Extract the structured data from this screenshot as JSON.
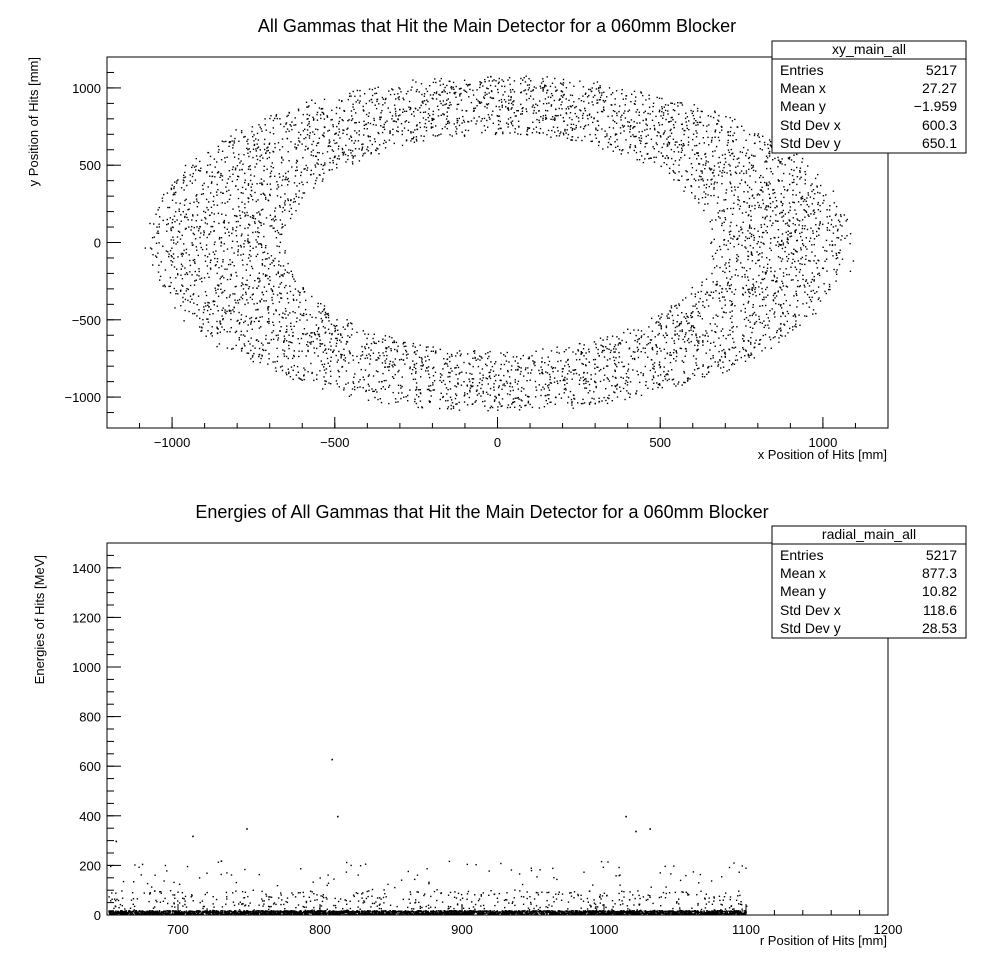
{
  "chart_data": [
    {
      "type": "scatter",
      "title": "All Gammas that Hit the Main Detector for a 060mm Blocker",
      "xlabel": "x Position of Hits [mm]",
      "ylabel": "y Position of Hits [mm]",
      "xlim": [
        -1200,
        1200
      ],
      "ylim": [
        -1200,
        1200
      ],
      "x_ticks": [
        -1000,
        -500,
        0,
        500,
        1000
      ],
      "x_tick_labels": [
        "−1000",
        "−500",
        "0",
        "500",
        "1000"
      ],
      "y_ticks": [
        -1000,
        -500,
        0,
        500,
        1000
      ],
      "y_tick_labels": [
        "−1000",
        "−500",
        "0",
        "500",
        "1000"
      ],
      "distribution": {
        "shape": "elliptical ring",
        "center": [
          0,
          0
        ],
        "inner_radius_x": 650,
        "inner_radius_y": 700,
        "outer_radius_x": 1100,
        "outer_radius_y": 1100
      },
      "stats_box": {
        "name": "xy_main_all",
        "rows": [
          {
            "label": "Entries",
            "value": "5217"
          },
          {
            "label": "Mean x",
            "value": "27.27"
          },
          {
            "label": "Mean y",
            "value": "−1.959"
          },
          {
            "label": "Std Dev x",
            "value": "600.3"
          },
          {
            "label": "Std Dev y",
            "value": "650.1"
          }
        ]
      },
      "grid": false,
      "legend": "none"
    },
    {
      "type": "scatter",
      "title": "Energies of All Gammas that Hit the Main Detector for a 060mm Blocker",
      "xlabel": "r Position of Hits [mm]",
      "ylabel": "Energies of Hits [MeV]",
      "xlim": [
        650,
        1200
      ],
      "ylim": [
        0,
        1500
      ],
      "x_ticks": [
        700,
        800,
        900,
        1000,
        1100,
        1200
      ],
      "x_tick_labels": [
        "700",
        "800",
        "900",
        "1000",
        "1100",
        "1200"
      ],
      "y_ticks": [
        0,
        200,
        400,
        600,
        800,
        1000,
        1200,
        1400
      ],
      "y_tick_labels": [
        "0",
        "200",
        "400",
        "600",
        "800",
        "1000",
        "1200",
        "1400"
      ],
      "distribution": {
        "shape": "dense band near zero energy",
        "r_range": [
          650,
          1100
        ],
        "energy_band_max": 20
      },
      "notable_points": [
        [
          656,
          300
        ],
        [
          683,
          100
        ],
        [
          710,
          320
        ],
        [
          730,
          220
        ],
        [
          748,
          350
        ],
        [
          808,
          630
        ],
        [
          812,
          400
        ],
        [
          1015,
          400
        ],
        [
          1022,
          340
        ],
        [
          1032,
          350
        ]
      ],
      "stats_box": {
        "name": "radial_main_all",
        "rows": [
          {
            "label": "Entries",
            "value": "5217"
          },
          {
            "label": "Mean x",
            "value": "877.3"
          },
          {
            "label": "Mean y",
            "value": "10.82"
          },
          {
            "label": "Std Dev x",
            "value": "118.6"
          },
          {
            "label": "Std Dev y",
            "value": "28.53"
          }
        ]
      },
      "grid": false,
      "legend": "none"
    }
  ]
}
